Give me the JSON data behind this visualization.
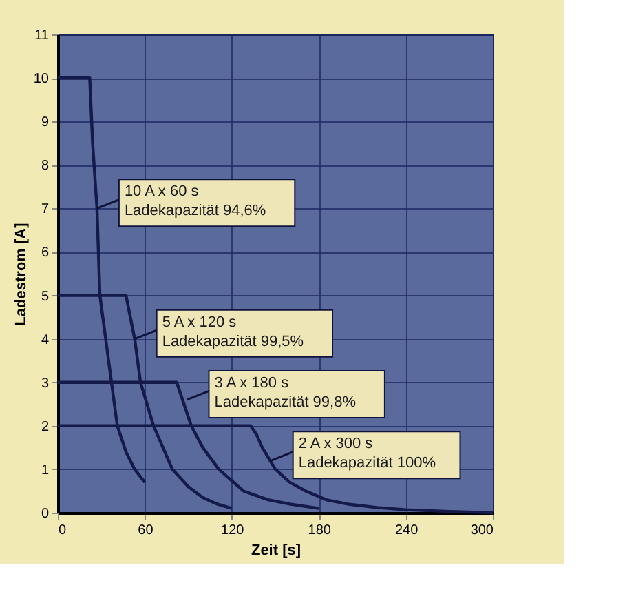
{
  "chart_data": {
    "type": "line",
    "xlabel": "Zeit [s]",
    "ylabel": "Ladestrom [A]",
    "xlim": [
      0,
      300
    ],
    "xticks": [
      0,
      60,
      120,
      180,
      240,
      300
    ],
    "ylim": [
      0,
      11
    ],
    "yticks": [
      0,
      1,
      2,
      3,
      4,
      5,
      6,
      7,
      8,
      9,
      10,
      11
    ],
    "grid": true,
    "marker": "none",
    "line_style": "solid",
    "series": [
      {
        "color": "#141a4a",
        "x": [
          0,
          22,
          24,
          27,
          29,
          33,
          37,
          41,
          47,
          53,
          60
        ],
        "values": [
          10,
          10,
          8.5,
          7,
          5,
          4,
          3,
          2,
          1.4,
          1,
          0.7
        ]
      },
      {
        "color": "#141a4a",
        "x": [
          0,
          47,
          50,
          53,
          57,
          66,
          79,
          90,
          100,
          110,
          120
        ],
        "values": [
          5,
          5,
          4.5,
          4,
          3,
          2,
          1,
          0.6,
          0.35,
          0.2,
          0.1
        ]
      },
      {
        "color": "#141a4a",
        "x": [
          0,
          82,
          86,
          92,
          100,
          111,
          128,
          145,
          160,
          180
        ],
        "values": [
          3,
          3,
          2.6,
          2,
          1.5,
          1,
          0.5,
          0.3,
          0.2,
          0.1
        ]
      },
      {
        "color": "#141a4a",
        "x": [
          0,
          133,
          137,
          141,
          150,
          160,
          171,
          185,
          200,
          220,
          240,
          270,
          300
        ],
        "values": [
          2,
          2,
          1.8,
          1.5,
          1,
          0.7,
          0.5,
          0.3,
          0.2,
          0.12,
          0.07,
          0.03,
          0
        ]
      }
    ],
    "annotations": [
      {
        "text": "10 A x 60 s\nLadekapazität 94,6%",
        "x": 27,
        "y": 7
      },
      {
        "text": "5 A x 120 s\nLadekapazität 99,5%",
        "x": 53,
        "y": 4
      },
      {
        "text": "3 A x 180 s\nLadekapazität 99,8%",
        "x": 89,
        "y": 2.6
      },
      {
        "text": "2 A x 300 s\nLadekapazität 100%",
        "x": 147,
        "y": 1.2
      }
    ]
  }
}
